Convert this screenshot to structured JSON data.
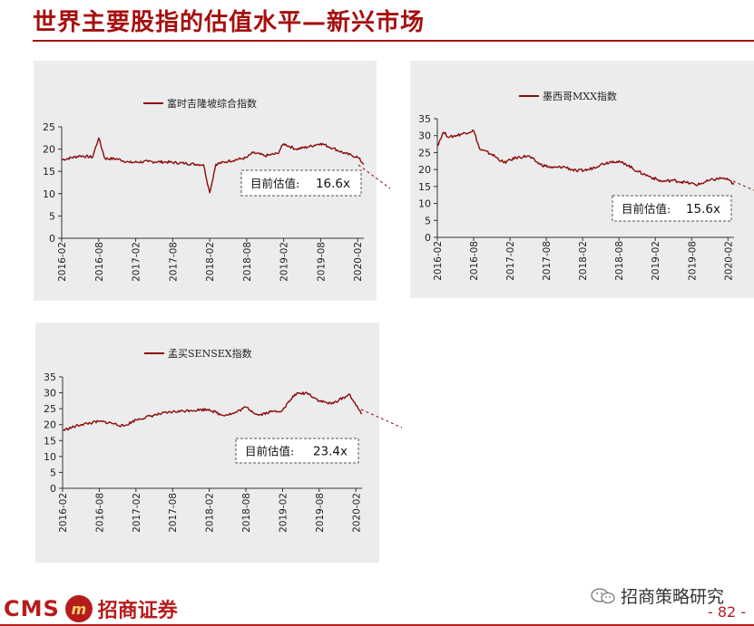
{
  "slide": {
    "title": "世界主要股指的估值水平—新兴市场",
    "page_number": "- 82 -",
    "brand_latin": "CMS",
    "brand_badge": "m",
    "brand_cn": "招商证券",
    "wechat_label": "招商策略研究"
  },
  "colors": {
    "series": "#8b0a0a",
    "title": "#a50f0f",
    "panel_bg": "#ececec"
  },
  "chart_data": [
    {
      "type": "line",
      "legend": "富时吉隆坡综合指数",
      "current_label": "目前估值:",
      "current_value": "16.6x",
      "ylim": [
        0,
        25
      ],
      "yticks": [
        0,
        5,
        10,
        15,
        20,
        25
      ],
      "xticks": [
        "2016-02",
        "2016-08",
        "2017-02",
        "2017-08",
        "2018-02",
        "2018-08",
        "2019-02",
        "2019-08",
        "2020-02"
      ],
      "x": [
        "2016-02",
        "2016-05",
        "2016-07",
        "2016-08",
        "2016-09",
        "2016-11",
        "2017-01",
        "2017-04",
        "2017-07",
        "2017-10",
        "2018-01",
        "2018-02",
        "2018-03",
        "2018-05",
        "2018-07",
        "2018-08",
        "2018-09",
        "2018-11",
        "2019-01",
        "2019-02",
        "2019-04",
        "2019-06",
        "2019-08",
        "2019-10",
        "2019-12",
        "2020-01",
        "2020-02",
        "2020-03"
      ],
      "values": [
        17.6,
        18.5,
        18.2,
        22.5,
        17.9,
        17.8,
        17.0,
        17.2,
        17.1,
        16.8,
        16.5,
        10.2,
        16.6,
        17.3,
        17.8,
        18.1,
        19.2,
        18.5,
        19.0,
        21.2,
        20.0,
        20.5,
        21.3,
        20.2,
        19.0,
        18.6,
        18.2,
        16.6
      ]
    },
    {
      "type": "line",
      "legend": "墨西哥MXX指数",
      "current_label": "目前估值:",
      "current_value": "15.6x",
      "ylim": [
        0,
        35
      ],
      "yticks": [
        0,
        5,
        10,
        15,
        20,
        25,
        30,
        35
      ],
      "xticks": [
        "2016-02",
        "2016-08",
        "2017-02",
        "2017-08",
        "2018-02",
        "2018-08",
        "2019-02",
        "2019-08",
        "2020-02"
      ],
      "x": [
        "2016-02",
        "2016-03",
        "2016-04",
        "2016-06",
        "2016-08",
        "2016-09",
        "2016-11",
        "2017-01",
        "2017-03",
        "2017-05",
        "2017-07",
        "2017-09",
        "2017-11",
        "2018-01",
        "2018-03",
        "2018-05",
        "2018-07",
        "2018-09",
        "2018-11",
        "2019-01",
        "2019-03",
        "2019-05",
        "2019-07",
        "2019-09",
        "2019-11",
        "2020-01",
        "2020-02",
        "2020-03"
      ],
      "values": [
        27.0,
        31.0,
        29.5,
        30.5,
        31.5,
        26.0,
        24.5,
        22.0,
        23.5,
        24.0,
        21.5,
        20.5,
        20.8,
        19.5,
        20.0,
        21.5,
        22.5,
        21.8,
        19.5,
        18.0,
        16.5,
        16.8,
        16.2,
        15.5,
        16.8,
        17.5,
        17.0,
        15.6
      ]
    },
    {
      "type": "line",
      "legend": "孟买SENSEX指数",
      "current_label": "目前估值:",
      "current_value": "23.4x",
      "ylim": [
        0,
        35
      ],
      "yticks": [
        0,
        5,
        10,
        15,
        20,
        25,
        30,
        35
      ],
      "xticks": [
        "2016-02",
        "2016-08",
        "2017-02",
        "2017-08",
        "2018-02",
        "2018-08",
        "2019-02",
        "2019-08",
        "2020-02"
      ],
      "x": [
        "2016-02",
        "2016-05",
        "2016-08",
        "2016-10",
        "2016-12",
        "2017-02",
        "2017-05",
        "2017-08",
        "2017-11",
        "2018-02",
        "2018-04",
        "2018-06",
        "2018-08",
        "2018-10",
        "2018-12",
        "2019-02",
        "2019-04",
        "2019-06",
        "2019-08",
        "2019-10",
        "2019-12",
        "2020-01",
        "2020-02",
        "2020-03"
      ],
      "values": [
        18.2,
        20.0,
        21.0,
        20.5,
        19.5,
        21.5,
        23.0,
        24.0,
        24.5,
        24.8,
        23.0,
        23.5,
        25.5,
        23.0,
        24.0,
        24.5,
        29.5,
        30.0,
        27.5,
        26.5,
        28.5,
        29.5,
        26.0,
        23.4
      ]
    }
  ]
}
